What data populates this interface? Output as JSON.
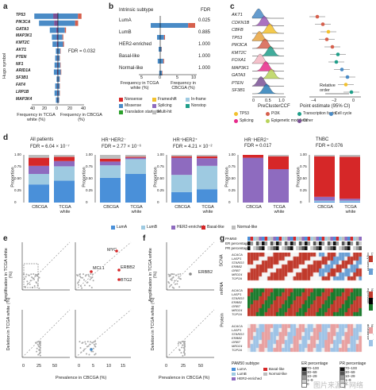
{
  "panels": {
    "a": "a",
    "b": "b",
    "c": "c",
    "d": "d",
    "e": "e",
    "f": "f",
    "g": "g"
  },
  "a": {
    "ylabel": "Hugo symbol",
    "genes": [
      "TP53",
      "PIK3CA",
      "GATA3",
      "MAP3K1",
      "KMT2C",
      "AKT1",
      "PTEN",
      "NF1",
      "ARID1A",
      "SF3B1",
      "FAT4",
      "LRP1B",
      "MAP3K4"
    ],
    "left_vals": [
      35,
      28,
      12,
      9,
      8,
      3,
      4,
      5,
      6,
      2,
      4,
      5,
      3
    ],
    "right_vals": [
      35,
      30,
      12,
      8,
      9,
      4,
      3,
      4,
      5,
      3,
      3,
      3,
      2
    ],
    "fdr": "FDR = 0.032",
    "xticks": [
      "40",
      "20",
      "0",
      "20",
      "40"
    ],
    "xlabel_left": "Frequency in TCGA white (%)",
    "xlabel_right": "Frequency in CBCGA (%)"
  },
  "b": {
    "title": "Intrinsic subtype",
    "fdr_header": "FDR",
    "subtypes": [
      "LumA",
      "LumB",
      "HER2-enriched",
      "Basal-like",
      "Normal-like"
    ],
    "fdr": [
      "0.025",
      "0.885",
      "1.000",
      "1.000",
      "1.000"
    ],
    "left_vals": [
      3,
      1,
      0.5,
      0.8,
      0.3
    ],
    "right_vals": [
      11,
      1.5,
      0.5,
      1.2,
      0.7
    ],
    "xticks": [
      "5",
      "0",
      "5",
      "10"
    ],
    "xlabel_left": "Frequency in TCGA white (%)",
    "xlabel_right": "Frequency in CBCGA (%)",
    "legend": [
      "Nonsense",
      "Frameshift",
      "In-frame",
      "Missense",
      "Splicing",
      "Nonstop",
      "Translation start site",
      "Multi-hit"
    ]
  },
  "c": {
    "genes": [
      "AKT1",
      "CDKN1B",
      "CBFB",
      "TP53",
      "PIK3CA",
      "KMT2C",
      "FOXA1",
      "MAP3K1",
      "GATA3",
      "PTEN",
      "SF3B1"
    ],
    "ridge_colors": [
      "#4a8bc6",
      "#9b59b6",
      "#f2c12e",
      "#e7a33e",
      "#d6604d",
      "#1f9e89",
      "#f4b6c2",
      "#e7298a",
      "#b8d35a",
      "#7a5195",
      "#2c7fb8"
    ],
    "dot_colors": [
      "#d6604d",
      "#d6604d",
      "#f2c12e",
      "#d6604d",
      "#d6604d",
      "#1f9e89",
      "#1f9e89",
      "#4a8bc6",
      "#4a8bc6",
      "#f2c12e",
      "#1f9e89"
    ],
    "xlabel_left": "PreClusterCCF",
    "xlabel_right": "Point estimate (95% CI)",
    "xticks_left": [
      "0",
      "0.5",
      "1.0"
    ],
    "xticks_right": [
      "−4",
      "−2",
      "0"
    ],
    "relorder": "Relative order",
    "legend": [
      "TP53",
      "PI3K",
      "Transcription factor",
      "Cell cycle",
      "Splicing",
      "Epigenetic modifiers",
      "Other"
    ]
  },
  "d": {
    "groups": [
      {
        "title": "All patients",
        "fdr": "FDR = 6.04 × 10⁻⁷",
        "cb": [
          0.38,
          0.22,
          0.17,
          0.17,
          0.06
        ],
        "tc": [
          0.46,
          0.3,
          0.11,
          0.09,
          0.04
        ]
      },
      {
        "title": "HR⁺HER2⁻",
        "fdr": "FDR = 2.77 × 10⁻⁶",
        "cb": [
          0.52,
          0.26,
          0.08,
          0.06,
          0.08
        ],
        "tc": [
          0.6,
          0.31,
          0.03,
          0.02,
          0.04
        ]
      },
      {
        "title": "HR⁺HER2⁺",
        "fdr": "FDR = 4.21 × 10⁻²",
        "cb": [
          0.22,
          0.36,
          0.36,
          0.03,
          0.03
        ],
        "tc": [
          0.28,
          0.49,
          0.16,
          0.04,
          0.03
        ]
      },
      {
        "title": "HR⁻HER2⁺",
        "fdr": "FDR = 0.017",
        "cb": [
          0.0,
          0.0,
          0.94,
          0.06,
          0.0
        ],
        "tc": [
          0.0,
          0.0,
          0.7,
          0.27,
          0.03
        ]
      },
      {
        "title": "TNBC",
        "fdr": "FDR = 0.076",
        "cb": [
          0.02,
          0.02,
          0.08,
          0.85,
          0.03
        ],
        "tc": [
          0.02,
          0.02,
          0.04,
          0.88,
          0.04
        ]
      }
    ],
    "ylabel": "Proportion",
    "yticks": [
      "0",
      "0.25",
      "0.50",
      "0.75",
      "1.00"
    ],
    "xcats": [
      "CBCGA",
      "TCGA white"
    ],
    "legend": [
      "LumA",
      "LumB",
      "HER2-enriched",
      "Basal-like",
      "Normal-like"
    ],
    "colors": [
      "#4a90d9",
      "#9ecae1",
      "#8e6bbf",
      "#d62728",
      "#bdbdbd"
    ]
  },
  "e": {
    "ylabel_top": "Amplification in TCGA white (%)",
    "ylabel_bottom": "Deletion in TCGA white (%)",
    "xlabel": "Prevalence in CBCGA (%)",
    "labels": [
      "MYC",
      "MCL1",
      "ERBB2",
      "BTG2"
    ],
    "ticks_small": [
      "0",
      "25",
      "50"
    ],
    "ticks_zoom": [
      "0",
      "5",
      "10",
      "15"
    ]
  },
  "f": {
    "ylabel_top": "Amplification in TCGA white (%)",
    "ylabel_bottom": "Deletion in TCGA white (%)",
    "xlabel": "Prevalence in CBCGA (%)",
    "label": "ERBB2",
    "ticks": [
      "0",
      "25",
      "50"
    ]
  },
  "g": {
    "rows": [
      "PAM50",
      "ER percentage",
      "PR percentage"
    ],
    "sections": [
      "SCNA",
      "mRNA",
      "Protein"
    ],
    "genes": [
      "ACACA",
      "LASP1",
      "STARD3",
      "ERBB2",
      "GRB7",
      "MED24",
      "TOP2A"
    ],
    "scale_labels": [
      "Log₂ ratio of copy number",
      "Normalized expression",
      "Normalized abundance"
    ],
    "scale_ticks": [
      "2",
      "0",
      "−2"
    ],
    "legend_pam50_title": "PAM50 subtype",
    "legend_pam50": [
      "LumA",
      "LumB",
      "HER2-enriched",
      "Basal-like",
      "Normal-like"
    ],
    "legend_er_title": "ER percentage",
    "legend_er": [
      "70–100",
      "30–69",
      "10–29",
      "1–9",
      "0"
    ],
    "legend_pr_title": "PR percentage",
    "legend_pr": [
      "70–100",
      "30–69",
      "10–29",
      "1–9",
      "0"
    ]
  },
  "watermark": "图片来源于网络"
}
